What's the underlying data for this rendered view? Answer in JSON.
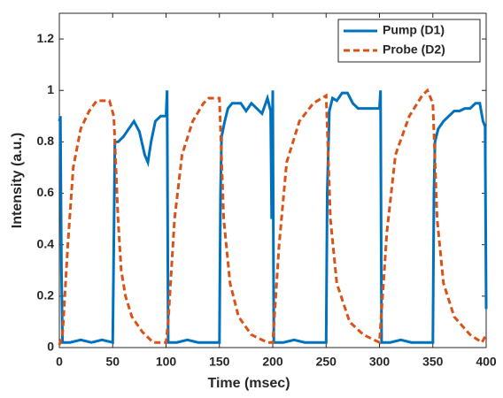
{
  "chart_data": {
    "type": "line",
    "xlabel": "Time (msec)",
    "ylabel": "Intensity (a.u.)",
    "xlim": [
      0,
      400
    ],
    "ylim": [
      0,
      1.3
    ],
    "xticks": [
      0,
      50,
      100,
      150,
      200,
      250,
      300,
      350,
      400
    ],
    "yticks": [
      0,
      0.2,
      0.4,
      0.6,
      0.8,
      1,
      1.2
    ],
    "legend": "upper right",
    "series": [
      {
        "name": "Pump (D1)",
        "color": "#0072BD",
        "style": "solid",
        "x": [
          0,
          1,
          2,
          3,
          10,
          20,
          30,
          40,
          50,
          51,
          52,
          55,
          60,
          65,
          70,
          75,
          80,
          83,
          86,
          90,
          95,
          100,
          101,
          102,
          110,
          120,
          130,
          140,
          150,
          151,
          152,
          155,
          158,
          162,
          170,
          175,
          180,
          185,
          190,
          195,
          198,
          199,
          200,
          201,
          210,
          220,
          230,
          240,
          250,
          251,
          253,
          256,
          260,
          265,
          270,
          275,
          280,
          290,
          300,
          301,
          302,
          310,
          320,
          330,
          340,
          350,
          351,
          352,
          355,
          360,
          365,
          370,
          375,
          380,
          385,
          390,
          394,
          397,
          399,
          400
        ],
        "values": [
          0.88,
          0.9,
          0.3,
          0.02,
          0.02,
          0.03,
          0.02,
          0.03,
          0.02,
          0.4,
          0.8,
          0.8,
          0.82,
          0.85,
          0.88,
          0.84,
          0.75,
          0.72,
          0.8,
          0.88,
          0.9,
          0.9,
          1,
          0.02,
          0.02,
          0.03,
          0.02,
          0.02,
          0.02,
          0.6,
          0.82,
          0.88,
          0.93,
          0.95,
          0.95,
          0.92,
          0.95,
          0.93,
          0.91,
          0.97,
          0.92,
          0.5,
          1,
          0.02,
          0.02,
          0.03,
          0.02,
          0.02,
          0.02,
          0.6,
          0.92,
          0.97,
          0.96,
          0.99,
          0.99,
          0.95,
          0.93,
          0.93,
          0.93,
          1,
          0.02,
          0.02,
          0.03,
          0.02,
          0.02,
          0.02,
          0.6,
          0.8,
          0.85,
          0.88,
          0.9,
          0.92,
          0.92,
          0.93,
          0.93,
          0.95,
          0.95,
          0.88,
          0.86,
          0.15
        ]
      },
      {
        "name": "Probe (D2)",
        "color": "#D95319",
        "style": "dashed",
        "x": [
          0,
          3,
          8,
          13,
          20,
          28,
          35,
          47,
          51,
          55,
          58,
          62,
          68,
          78,
          88,
          100,
          102,
          108,
          115,
          125,
          135,
          140,
          150,
          154,
          160,
          168,
          180,
          195,
          200,
          206,
          213,
          225,
          238,
          250,
          254,
          260,
          272,
          285,
          300,
          307,
          315,
          328,
          340,
          345,
          350,
          354,
          360,
          370,
          385,
          396,
          400
        ],
        "values": [
          0.01,
          0.05,
          0.4,
          0.7,
          0.85,
          0.92,
          0.96,
          0.96,
          0.9,
          0.5,
          0.3,
          0.2,
          0.12,
          0.06,
          0.02,
          0.02,
          0.1,
          0.5,
          0.75,
          0.88,
          0.95,
          0.97,
          0.97,
          0.5,
          0.25,
          0.12,
          0.05,
          0.02,
          0.02,
          0.4,
          0.72,
          0.88,
          0.95,
          0.98,
          0.5,
          0.25,
          0.1,
          0.05,
          0.02,
          0.45,
          0.75,
          0.9,
          0.98,
          1,
          0.95,
          0.5,
          0.25,
          0.12,
          0.05,
          0.02,
          0.05
        ]
      }
    ]
  }
}
